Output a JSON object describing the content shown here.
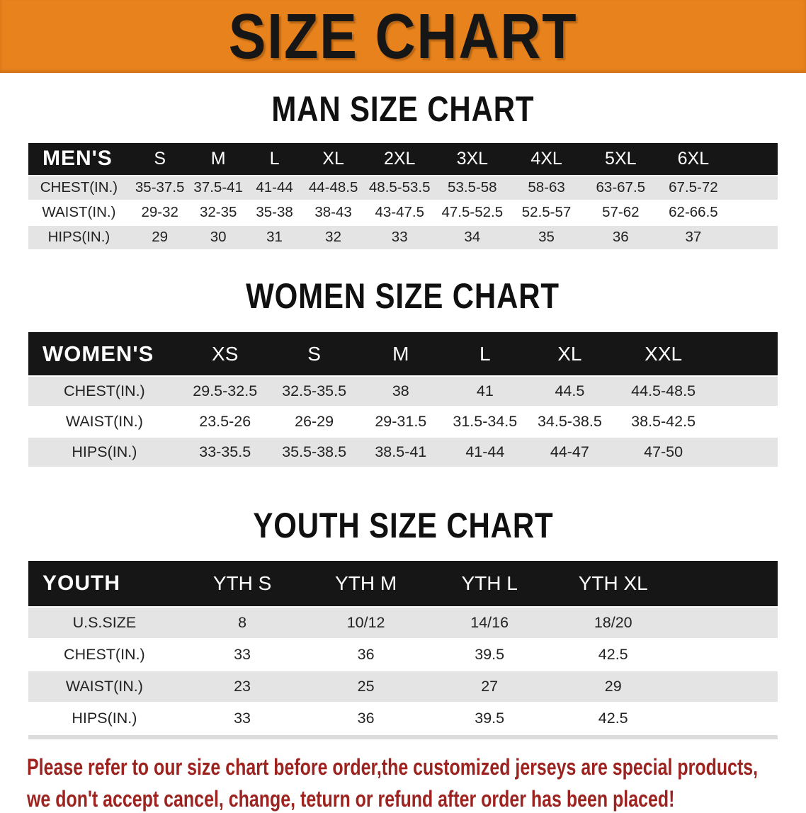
{
  "banner": {
    "title": "SIZE CHART",
    "bg_color": "#e7821d",
    "text_color": "#161616"
  },
  "colors": {
    "header_row_bg": "#161616",
    "header_row_text": "#ffffff",
    "shaded_row_bg": "#e4e4e5",
    "plain_row_bg": "#ffffff",
    "disclaimer_text": "#9c231f"
  },
  "sections": [
    {
      "heading": "MAN SIZE CHART",
      "table": {
        "corner_label": "MEN'S",
        "columns": [
          "S",
          "M",
          "L",
          "XL",
          "2XL",
          "3XL",
          "4XL",
          "5XL",
          "6XL"
        ],
        "rows": [
          {
            "label": "CHEST(IN.)",
            "values": [
              "35-37.5",
              "37.5-41",
              "41-44",
              "44-48.5",
              "48.5-53.5",
              "53.5-58",
              "58-63",
              "63-67.5",
              "67.5-72"
            ]
          },
          {
            "label": "WAIST(IN.)",
            "values": [
              "29-32",
              "32-35",
              "35-38",
              "38-43",
              "43-47.5",
              "47.5-52.5",
              "52.5-57",
              "57-62",
              "62-66.5"
            ]
          },
          {
            "label": "HIPS(IN.)",
            "values": [
              "29",
              "30",
              "31",
              "32",
              "33",
              "34",
              "35",
              "36",
              "37"
            ]
          }
        ]
      }
    },
    {
      "heading": "WOMEN SIZE CHART",
      "table": {
        "corner_label": "WOMEN'S",
        "columns": [
          "XS",
          "S",
          "M",
          "L",
          "XL",
          "XXL"
        ],
        "rows": [
          {
            "label": "CHEST(IN.)",
            "values": [
              "29.5-32.5",
              "32.5-35.5",
              "38",
              "41",
              "44.5",
              "44.5-48.5"
            ]
          },
          {
            "label": "WAIST(IN.)",
            "values": [
              "23.5-26",
              "26-29",
              "29-31.5",
              "31.5-34.5",
              "34.5-38.5",
              "38.5-42.5"
            ]
          },
          {
            "label": "HIPS(IN.)",
            "values": [
              "33-35.5",
              "35.5-38.5",
              "38.5-41",
              "41-44",
              "44-47",
              "47-50"
            ]
          }
        ]
      }
    },
    {
      "heading": "YOUTH SIZE CHART",
      "table": {
        "corner_label": "YOUTH",
        "columns": [
          "YTH S",
          "YTH M",
          "YTH L",
          "YTH XL"
        ],
        "rows": [
          {
            "label": "U.S.SIZE",
            "values": [
              "8",
              "10/12",
              "14/16",
              "18/20"
            ]
          },
          {
            "label": "CHEST(IN.)",
            "values": [
              "33",
              "36",
              "39.5",
              "42.5"
            ]
          },
          {
            "label": "WAIST(IN.)",
            "values": [
              "23",
              "25",
              "27",
              "29"
            ]
          },
          {
            "label": "HIPS(IN.)",
            "values": [
              "33",
              "36",
              "39.5",
              "42.5"
            ]
          }
        ]
      }
    }
  ],
  "footer": {
    "line1": "Please refer to our size chart before order,the customized jerseys are special products,",
    "line2": "we don't accept cancel, change, teturn or refund after order has been placed!"
  }
}
